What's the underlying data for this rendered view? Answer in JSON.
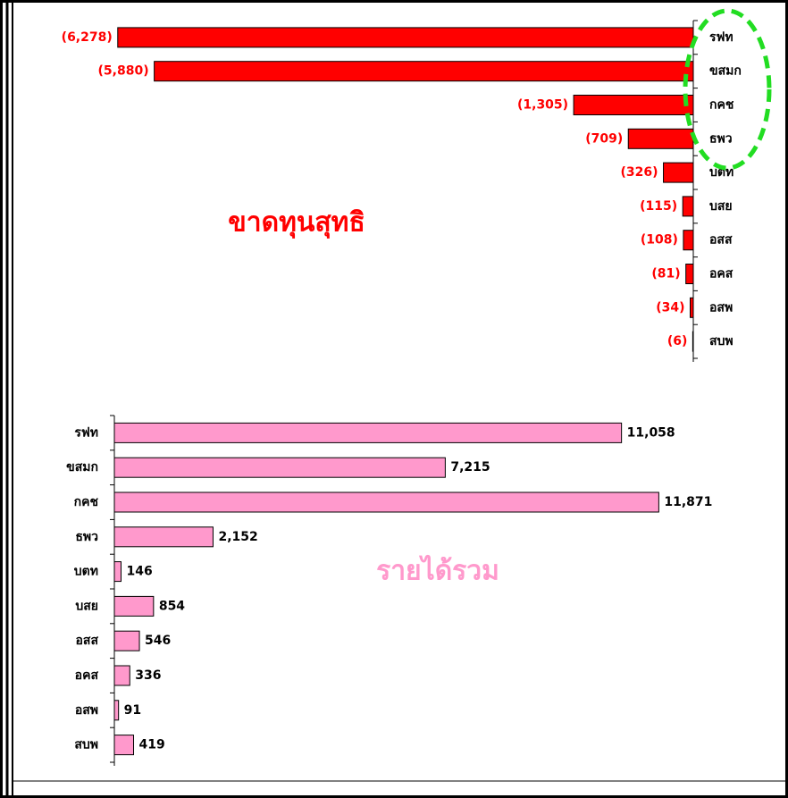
{
  "chart_data": [
    {
      "type": "bar",
      "orientation": "horizontal",
      "title": "ขาดทุนสุทธิ",
      "categories": [
        "รฟท",
        "ขสมก",
        "กคช",
        "ธพว",
        "บตท",
        "บสย",
        "อสส",
        "อคส",
        "อสพ",
        "สบพ"
      ],
      "values": [
        -6278,
        -5880,
        -1305,
        -709,
        -326,
        -115,
        -108,
        -81,
        -34,
        -6
      ],
      "value_labels": [
        "(6,278)",
        "(5,880)",
        "(1,305)",
        "(709)",
        "(326)",
        "(115)",
        "(108)",
        "(81)",
        "(34)",
        "(6)"
      ],
      "color": "#ff0000",
      "label_color": "#ff0000",
      "xlim": [
        -6500,
        0
      ]
    },
    {
      "type": "bar",
      "orientation": "horizontal",
      "title": "รายได้รวม",
      "categories": [
        "รฟท",
        "ขสมก",
        "กคช",
        "ธพว",
        "บตท",
        "บสย",
        "อสส",
        "อคส",
        "อสพ",
        "สบพ"
      ],
      "values": [
        11058,
        7215,
        11871,
        2152,
        146,
        854,
        546,
        336,
        91,
        419
      ],
      "value_labels": [
        "11,058",
        "7,215",
        "11,871",
        "2,152",
        "146",
        "854",
        "546",
        "336",
        "91",
        "419"
      ],
      "color": "#ff99cc",
      "label_color": "#000000",
      "xlim": [
        0,
        12000
      ]
    }
  ]
}
